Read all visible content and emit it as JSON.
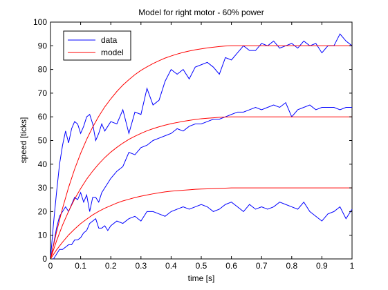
{
  "chart_data": {
    "type": "line",
    "title": "Model for right motor - 60% power",
    "xlabel": "time [s]",
    "ylabel": "speed [ticks]",
    "xlim": [
      0,
      1
    ],
    "ylim": [
      0,
      100
    ],
    "xticks": [
      "0",
      "0.1",
      "0.2",
      "0.3",
      "0.4",
      "0.5",
      "0.6",
      "0.7",
      "0.8",
      "0.9",
      "1"
    ],
    "xtick_values": [
      0,
      0.1,
      0.2,
      0.3,
      0.4,
      0.5,
      0.6,
      0.7,
      0.8,
      0.9,
      1
    ],
    "yticks": [
      "0",
      "10",
      "20",
      "30",
      "40",
      "50",
      "60",
      "70",
      "80",
      "90",
      "100"
    ],
    "ytick_values": [
      0,
      10,
      20,
      30,
      40,
      50,
      60,
      70,
      80,
      90,
      100
    ],
    "grid": false,
    "legend_position": "top-left",
    "legend": [
      {
        "label": "data",
        "color": "#0000ff"
      },
      {
        "label": "model",
        "color": "#ff0000"
      }
    ],
    "series": [
      {
        "name": "data",
        "color": "#0000ff",
        "x": [
          0,
          0.01,
          0.02,
          0.03,
          0.04,
          0.05,
          0.06,
          0.07,
          0.08,
          0.09,
          0.1,
          0.11,
          0.12,
          0.13,
          0.14,
          0.15,
          0.16,
          0.17,
          0.18,
          0.19,
          0.2,
          0.22,
          0.24,
          0.26,
          0.28,
          0.3,
          0.32,
          0.34,
          0.36,
          0.38,
          0.4,
          0.42,
          0.44,
          0.46,
          0.48,
          0.5,
          0.52,
          0.54,
          0.56,
          0.58,
          0.6,
          0.62,
          0.64,
          0.66,
          0.68,
          0.7,
          0.72,
          0.74,
          0.76,
          0.78,
          0.8,
          0.82,
          0.84,
          0.86,
          0.88,
          0.9,
          0.92,
          0.94,
          0.96,
          0.98,
          1
        ],
        "y": [
          0,
          15,
          28,
          40,
          48,
          54,
          49,
          55,
          58,
          57,
          53,
          56,
          60,
          61,
          57,
          50,
          53,
          57,
          54,
          56,
          58,
          57,
          63,
          53,
          62,
          61,
          72,
          65,
          67,
          75,
          80,
          78,
          80,
          76,
          81,
          82,
          83,
          81,
          78,
          85,
          84,
          87,
          90,
          88,
          88,
          91,
          90,
          92,
          89,
          90,
          91,
          89,
          92,
          90,
          91,
          87,
          90,
          90,
          95,
          92,
          90
        ]
      },
      {
        "name": "data",
        "color": "#0000ff",
        "x": [
          0,
          0.01,
          0.02,
          0.03,
          0.04,
          0.05,
          0.06,
          0.07,
          0.08,
          0.09,
          0.1,
          0.11,
          0.12,
          0.13,
          0.14,
          0.15,
          0.16,
          0.17,
          0.18,
          0.19,
          0.2,
          0.22,
          0.24,
          0.26,
          0.28,
          0.3,
          0.32,
          0.34,
          0.36,
          0.38,
          0.4,
          0.42,
          0.44,
          0.46,
          0.48,
          0.5,
          0.52,
          0.54,
          0.56,
          0.58,
          0.6,
          0.62,
          0.64,
          0.66,
          0.68,
          0.7,
          0.72,
          0.74,
          0.76,
          0.78,
          0.8,
          0.82,
          0.84,
          0.86,
          0.88,
          0.9,
          0.92,
          0.94,
          0.96,
          0.98,
          1
        ],
        "y": [
          0,
          6,
          13,
          18,
          20,
          22,
          20,
          23,
          26,
          25,
          28,
          24,
          27,
          20,
          26,
          26,
          24,
          28,
          30,
          32,
          34,
          37,
          39,
          45,
          44,
          47,
          48,
          50,
          51,
          52,
          53,
          55,
          54,
          56,
          57,
          57,
          58,
          59,
          59,
          60,
          61,
          62,
          62,
          63,
          64,
          63,
          64,
          65,
          64,
          66,
          60,
          63,
          64,
          65,
          63,
          64,
          64,
          64,
          63,
          64,
          64
        ]
      },
      {
        "name": "data",
        "color": "#0000ff",
        "x": [
          0,
          0.01,
          0.02,
          0.03,
          0.04,
          0.05,
          0.06,
          0.07,
          0.08,
          0.09,
          0.1,
          0.11,
          0.12,
          0.13,
          0.14,
          0.15,
          0.16,
          0.17,
          0.18,
          0.19,
          0.2,
          0.22,
          0.24,
          0.26,
          0.28,
          0.3,
          0.32,
          0.34,
          0.36,
          0.38,
          0.4,
          0.42,
          0.44,
          0.46,
          0.48,
          0.5,
          0.52,
          0.54,
          0.56,
          0.58,
          0.6,
          0.62,
          0.64,
          0.66,
          0.68,
          0.7,
          0.72,
          0.74,
          0.76,
          0.78,
          0.8,
          0.82,
          0.84,
          0.86,
          0.88,
          0.9,
          0.92,
          0.94,
          0.96,
          0.98,
          1
        ],
        "y": [
          0,
          0,
          2,
          4,
          4,
          5,
          6,
          6,
          8,
          8,
          9,
          11,
          12,
          15,
          16,
          17,
          13,
          13,
          14,
          12,
          14,
          16,
          15,
          17,
          18,
          16,
          20,
          20,
          19,
          18,
          20,
          21,
          22,
          21,
          22,
          23,
          22,
          20,
          21,
          23,
          24,
          22,
          20,
          23,
          21,
          22,
          21,
          22,
          24,
          23,
          22,
          21,
          24,
          20,
          18,
          16,
          19,
          20,
          22,
          17,
          21
        ]
      },
      {
        "name": "model",
        "color": "#ff0000",
        "x": [
          0,
          0.02,
          0.04,
          0.06,
          0.08,
          0.1,
          0.12,
          0.14,
          0.16,
          0.18,
          0.2,
          0.22,
          0.24,
          0.26,
          0.28,
          0.3,
          0.32,
          0.34,
          0.36,
          0.38,
          0.4,
          0.42,
          0.44,
          0.46,
          0.48,
          0.5,
          0.52,
          0.54,
          0.56,
          0.58,
          0.6,
          0.62,
          0.64,
          0.66,
          0.68,
          0.7,
          0.72,
          0.74,
          0.76,
          0.78,
          0.8,
          0.82,
          0.84,
          0.86,
          0.88,
          0.9,
          0.92,
          0.94,
          0.96,
          0.98,
          1
        ],
        "y": [
          0,
          11.4,
          21.4,
          30.2,
          37.9,
          44.6,
          50.5,
          55.7,
          60.2,
          64.2,
          67.6,
          70.7,
          73.4,
          75.7,
          77.8,
          79.6,
          81.1,
          82.5,
          83.7,
          84.8,
          85.7,
          86.5,
          87.2,
          87.8,
          88.3,
          88.7,
          89.1,
          89.4,
          89.7,
          89.9,
          90.0,
          90.0,
          90.0,
          90.0,
          90.0,
          90.0,
          90.0,
          90.0,
          90.0,
          90.0,
          90.0,
          90.0,
          90.0,
          90.0,
          90.0,
          90.0,
          90.0,
          90.0,
          90.0,
          90.0,
          90.0
        ]
      },
      {
        "name": "model",
        "color": "#ff0000",
        "x": [
          0,
          0.02,
          0.04,
          0.06,
          0.08,
          0.1,
          0.12,
          0.14,
          0.16,
          0.18,
          0.2,
          0.22,
          0.24,
          0.26,
          0.28,
          0.3,
          0.32,
          0.34,
          0.36,
          0.38,
          0.4,
          0.42,
          0.44,
          0.46,
          0.48,
          0.5,
          0.52,
          0.54,
          0.56,
          0.58,
          0.6,
          0.62,
          0.64,
          0.66,
          0.68,
          0.7,
          0.72,
          0.74,
          0.76,
          0.78,
          0.8,
          0.82,
          0.84,
          0.86,
          0.88,
          0.9,
          0.92,
          0.94,
          0.96,
          0.98,
          1
        ],
        "y": [
          0,
          7.6,
          14.3,
          20.1,
          25.3,
          29.7,
          33.7,
          37.1,
          40.1,
          42.8,
          45.1,
          47.1,
          48.9,
          50.5,
          51.8,
          53.0,
          54.1,
          55.0,
          55.8,
          56.5,
          57.1,
          57.6,
          58.1,
          58.5,
          58.9,
          59.2,
          59.4,
          59.6,
          59.8,
          59.9,
          60.0,
          60.0,
          60.0,
          60.0,
          60.0,
          60.0,
          60.0,
          60.0,
          60.0,
          60.0,
          60.0,
          60.0,
          60.0,
          60.0,
          60.0,
          60.0,
          60.0,
          60.0,
          60.0,
          60.0,
          60.0
        ]
      },
      {
        "name": "model",
        "color": "#ff0000",
        "x": [
          0,
          0.02,
          0.04,
          0.06,
          0.08,
          0.1,
          0.12,
          0.14,
          0.16,
          0.18,
          0.2,
          0.22,
          0.24,
          0.26,
          0.28,
          0.3,
          0.32,
          0.34,
          0.36,
          0.38,
          0.4,
          0.42,
          0.44,
          0.46,
          0.48,
          0.5,
          0.52,
          0.54,
          0.56,
          0.58,
          0.6,
          0.62,
          0.64,
          0.66,
          0.68,
          0.7,
          0.72,
          0.74,
          0.76,
          0.78,
          0.8,
          0.82,
          0.84,
          0.86,
          0.88,
          0.9,
          0.92,
          0.94,
          0.96,
          0.98,
          1
        ],
        "y": [
          0,
          3.8,
          7.1,
          10.1,
          12.6,
          14.9,
          16.8,
          18.6,
          20.1,
          21.4,
          22.5,
          23.6,
          24.5,
          25.2,
          25.9,
          26.5,
          27.0,
          27.5,
          27.9,
          28.3,
          28.6,
          28.8,
          29.0,
          29.2,
          29.4,
          29.5,
          29.6,
          29.7,
          29.8,
          29.9,
          30.0,
          30.0,
          30.0,
          30.0,
          30.0,
          30.0,
          30.0,
          30.0,
          30.0,
          30.0,
          30.0,
          30.0,
          30.0,
          30.0,
          30.0,
          30.0,
          30.0,
          30.0,
          30.0,
          30.0,
          30.0
        ]
      }
    ]
  }
}
